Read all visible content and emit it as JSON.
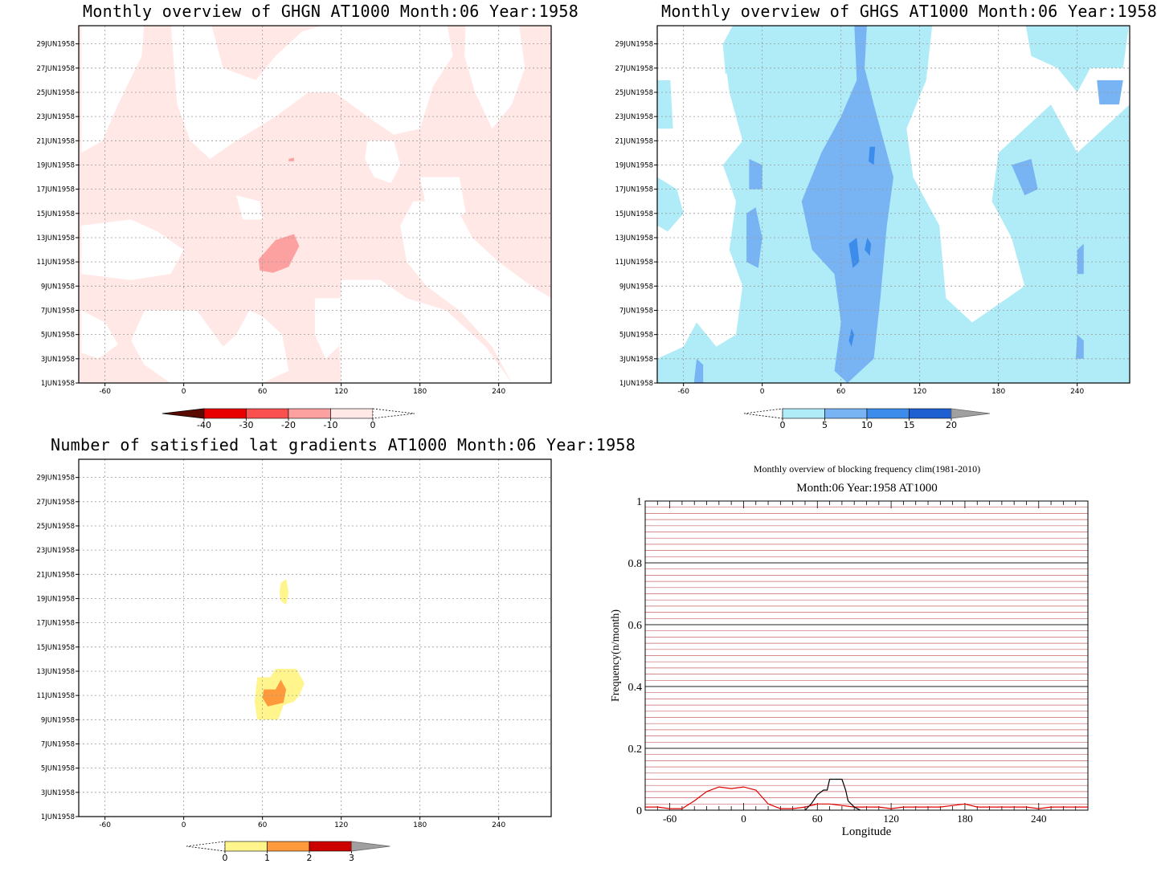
{
  "panels": {
    "ghgn": {
      "title": "Monthly overview of GHGN AT1000 Month:06 Year:1958",
      "colorbar": {
        "ticks": [
          "-40",
          "-30",
          "-20",
          "-10",
          "0"
        ],
        "colors": [
          "#5a0a00",
          "#e80000",
          "#fa5050",
          "#fca0a0",
          "#ffe8e6"
        ]
      }
    },
    "ghgs": {
      "title": "Monthly overview of GHGS AT1000 Month:06 Year:1958",
      "colorbar": {
        "ticks": [
          "0",
          "5",
          "10",
          "15",
          "20"
        ],
        "colors": [
          "#b0ecf8",
          "#78b4f4",
          "#3c8ceb",
          "#1e5fd2",
          "#a0a0a0"
        ]
      }
    },
    "gradients": {
      "title": "Number of satisfied lat gradients AT1000 Month:06 Year:1958",
      "colorbar": {
        "ticks": [
          "0",
          "1",
          "2",
          "3"
        ],
        "colors": [
          "#fff58c",
          "#ff9a3c",
          "#cd0000",
          "#a0a0a0"
        ]
      }
    },
    "frequency": {
      "title": "Monthly overview of blocking frequency clim(1981-2010)",
      "subtitle": "Month:06 Year:1958  AT1000"
    }
  },
  "map_axes": {
    "y_ticks": [
      "1JUN1958",
      "3JUN1958",
      "5JUN1958",
      "7JUN1958",
      "9JUN1958",
      "11JUN1958",
      "13JUN1958",
      "15JUN1958",
      "17JUN1958",
      "19JUN1958",
      "21JUN1958",
      "23JUN1958",
      "25JUN1958",
      "27JUN1958",
      "29JUN1958"
    ],
    "x_ticks": [
      "-60",
      "0",
      "60",
      "120",
      "180",
      "240"
    ]
  },
  "chart_data": [
    {
      "type": "heatmap",
      "title": "Monthly overview of GHGN AT1000 Month:06 Year:1958",
      "x_ticks": [
        -60,
        0,
        60,
        120,
        180,
        240
      ],
      "xlim": [
        -80,
        280
      ],
      "y_ticks": [
        "1JUN1958",
        "3JUN1958",
        "5JUN1958",
        "7JUN1958",
        "9JUN1958",
        "11JUN1958",
        "13JUN1958",
        "15JUN1958",
        "17JUN1958",
        "19JUN1958",
        "21JUN1958",
        "23JUN1958",
        "25JUN1958",
        "27JUN1958",
        "29JUN1958"
      ],
      "levels": [
        -40,
        -30,
        -20,
        -10,
        0
      ],
      "note_regions": [
        {
          "level_range": [
            -20,
            -10
          ],
          "lon": [
            57,
            90
          ],
          "day": [
            10,
            12.5
          ]
        }
      ]
    },
    {
      "type": "heatmap",
      "title": "Monthly overview of GHGS AT1000 Month:06 Year:1958",
      "x_ticks": [
        -60,
        0,
        60,
        120,
        180,
        240
      ],
      "xlim": [
        -80,
        280
      ],
      "y_ticks": [
        "1JUN1958",
        "3JUN1958",
        "5JUN1958",
        "7JUN1958",
        "9JUN1958",
        "11JUN1958",
        "13JUN1958",
        "15JUN1958",
        "17JUN1958",
        "19JUN1958",
        "21JUN1958",
        "23JUN1958",
        "25JUN1958",
        "27JUN1958",
        "29JUN1958"
      ],
      "levels": [
        0,
        5,
        10,
        15,
        20
      ]
    },
    {
      "type": "heatmap",
      "title": "Number of satisfied lat gradients AT1000 Month:06 Year:1958",
      "x_ticks": [
        -60,
        0,
        60,
        120,
        180,
        240
      ],
      "xlim": [
        -80,
        280
      ],
      "y_ticks": [
        "1JUN1958",
        "3JUN1958",
        "5JUN1958",
        "7JUN1958",
        "9JUN1958",
        "11JUN1958",
        "13JUN1958",
        "15JUN1958",
        "17JUN1958",
        "19JUN1958",
        "21JUN1958",
        "23JUN1958",
        "25JUN1958",
        "27JUN1958",
        "29JUN1958"
      ],
      "levels": [
        0,
        1,
        2,
        3
      ],
      "note_regions": [
        {
          "level_range": [
            0,
            1
          ],
          "lon": [
            72,
            80
          ],
          "day": [
            18.5,
            20.5
          ]
        },
        {
          "level_range": [
            0,
            1
          ],
          "lon": [
            55,
            92
          ],
          "day": [
            9,
            13
          ]
        },
        {
          "level_range": [
            1,
            2
          ],
          "lon": [
            60,
            78
          ],
          "day": [
            10,
            12
          ]
        }
      ]
    },
    {
      "type": "line",
      "title": "Monthly overview of blocking frequency clim(1981-2010)",
      "subtitle": "Month:06 Year:1958  AT1000",
      "xlabel": "Longitude",
      "ylabel": "Frequency(n/month)",
      "x_ticks": [
        -60,
        0,
        60,
        120,
        180,
        240
      ],
      "y_ticks": [
        0,
        0.2,
        0.4,
        0.6,
        0.8,
        1
      ],
      "xlim": [
        -80,
        280
      ],
      "ylim": [
        0,
        1
      ],
      "series": [
        {
          "color": "#e00000",
          "x": [
            -80,
            -70,
            -60,
            -50,
            -40,
            -30,
            -20,
            -10,
            0,
            10,
            20,
            30,
            40,
            50,
            60,
            70,
            80,
            90,
            100,
            110,
            120,
            130,
            140,
            150,
            160,
            170,
            180,
            190,
            200,
            210,
            220,
            230,
            240,
            250,
            260,
            270,
            280
          ],
          "y": [
            0.01,
            0.01,
            0.005,
            0.005,
            0.03,
            0.06,
            0.075,
            0.07,
            0.075,
            0.065,
            0.02,
            0.005,
            0.005,
            0.01,
            0.02,
            0.02,
            0.015,
            0.01,
            0.01,
            0.01,
            0.005,
            0.01,
            0.01,
            0.01,
            0.01,
            0.015,
            0.02,
            0.01,
            0.01,
            0.01,
            0.01,
            0.01,
            0.005,
            0.01,
            0.01,
            0.01,
            0.01
          ]
        },
        {
          "color": "#000000",
          "x": [
            50,
            55,
            60,
            65,
            68,
            70,
            80,
            83,
            85,
            90,
            95
          ],
          "y": [
            0,
            0.02,
            0.05,
            0.065,
            0.065,
            0.1,
            0.1,
            0.065,
            0.03,
            0.01,
            0
          ]
        }
      ]
    }
  ]
}
